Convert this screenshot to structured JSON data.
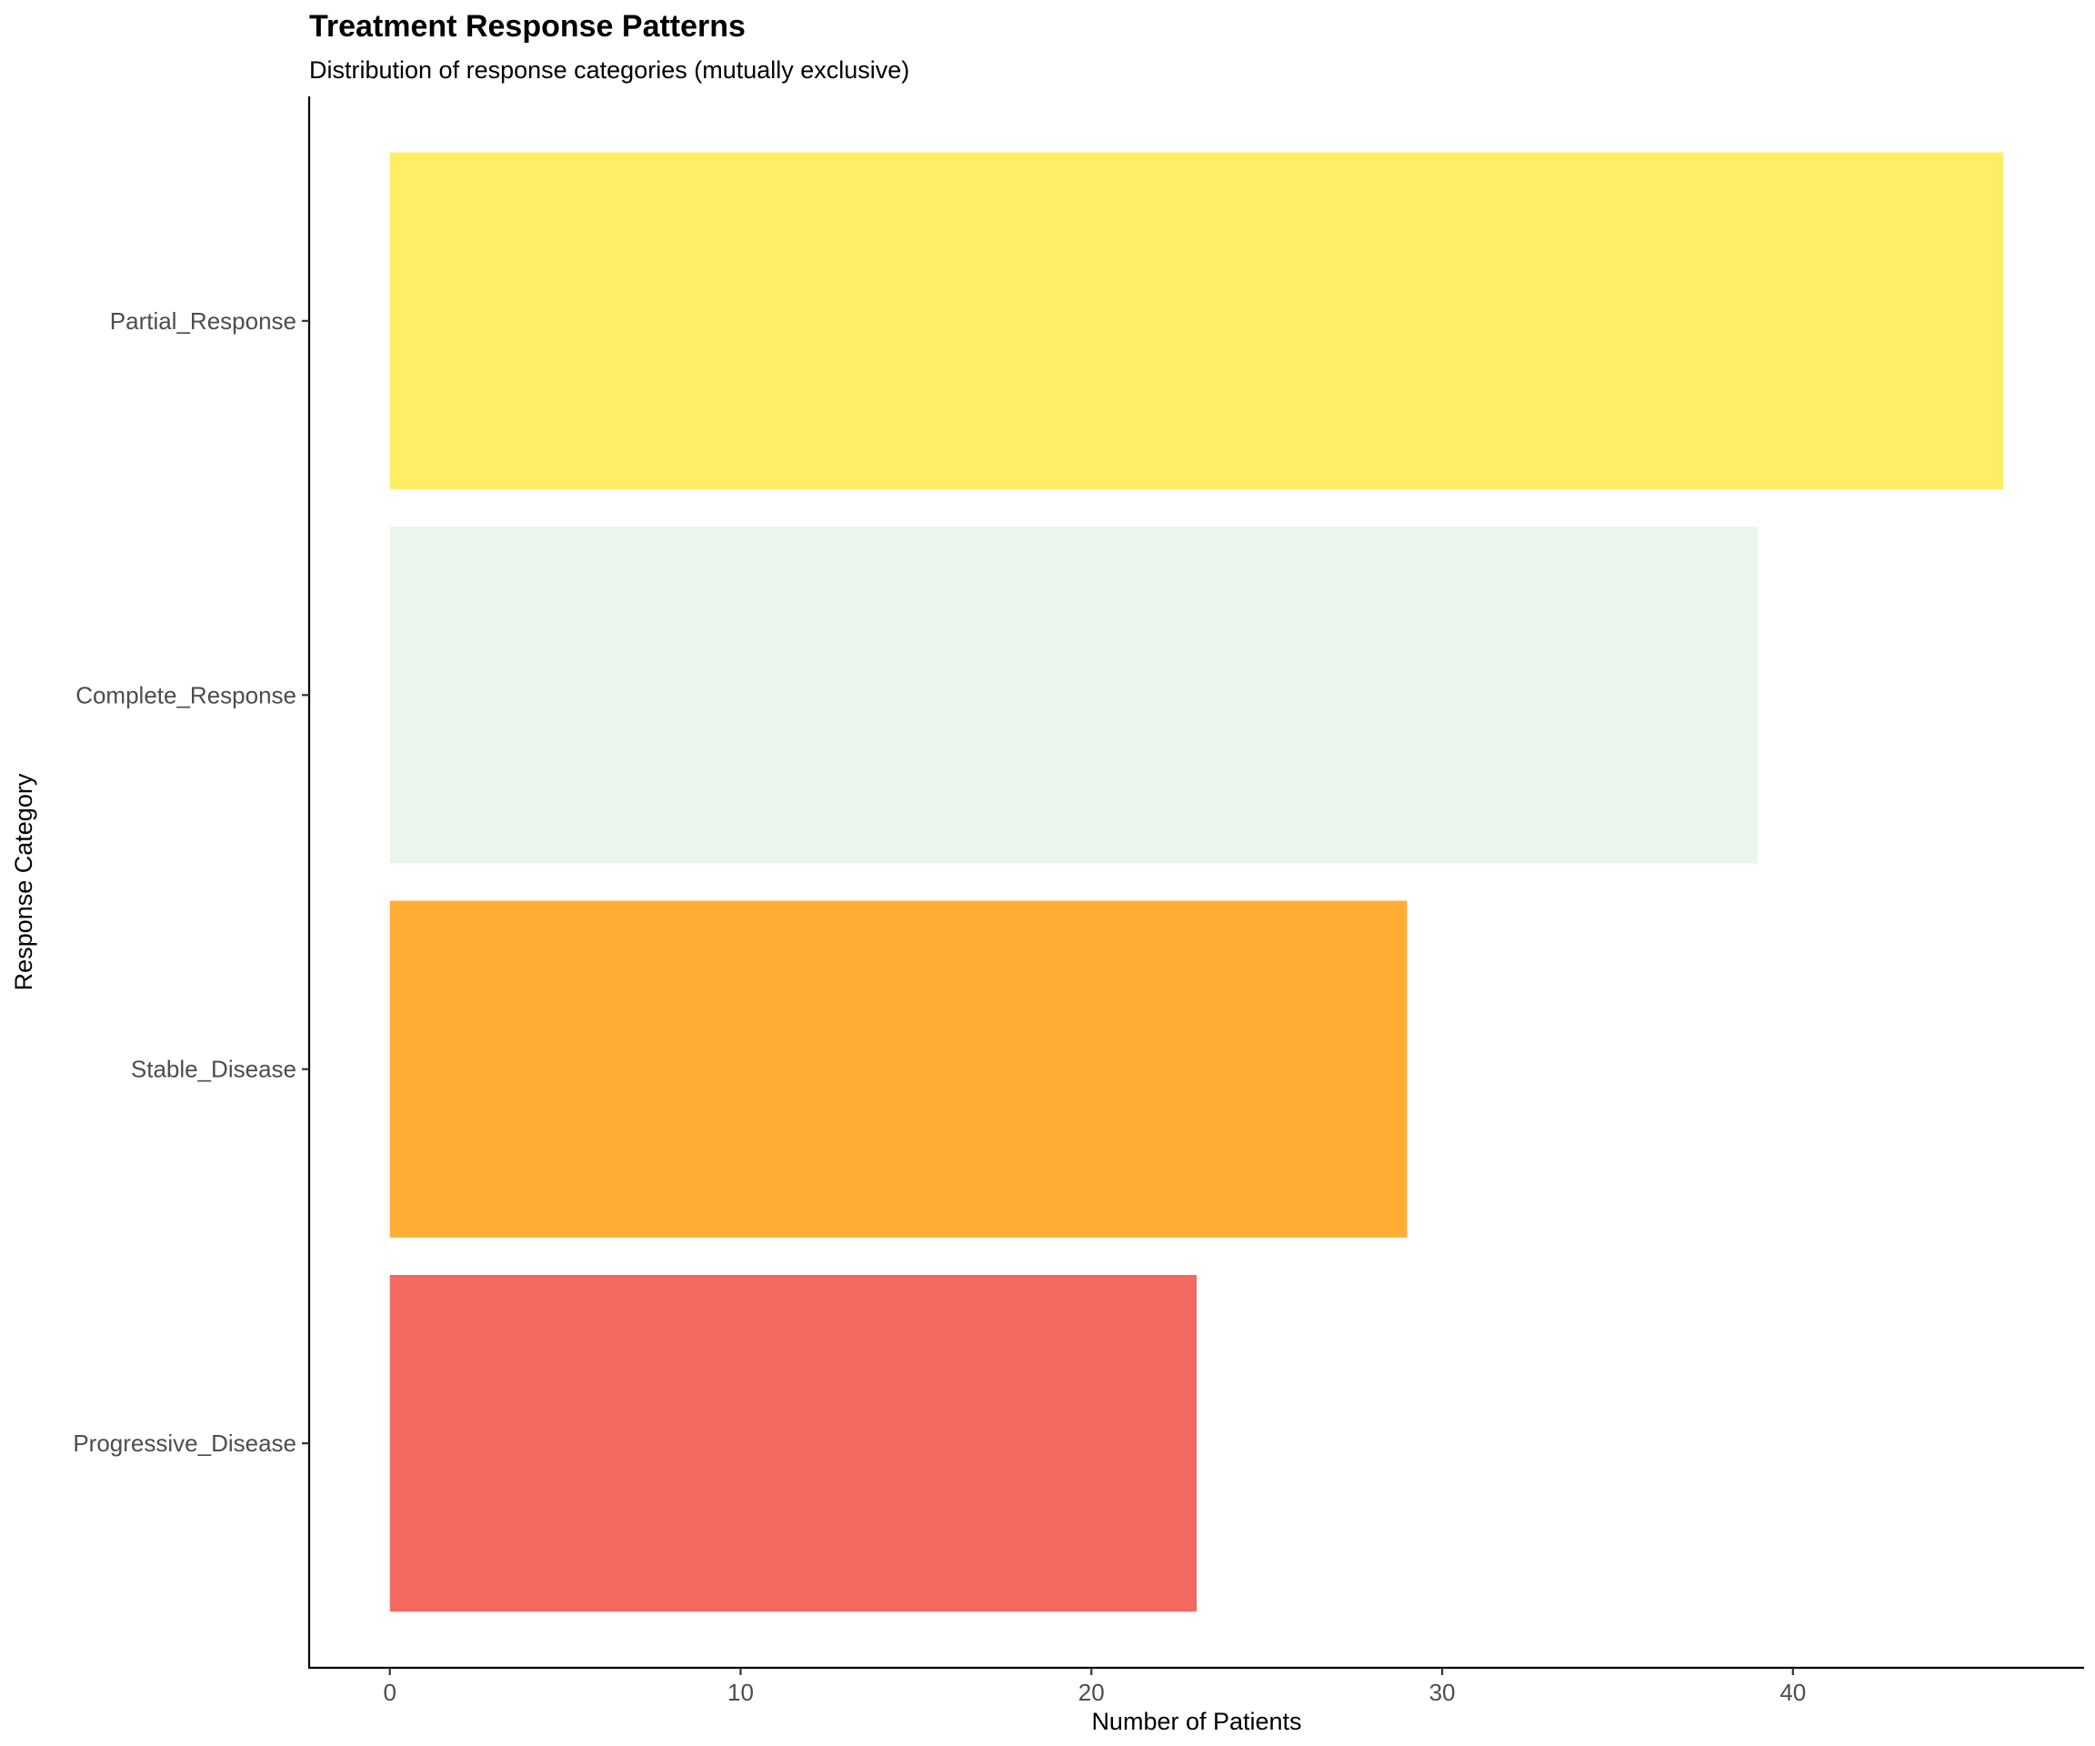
{
  "chart_data": {
    "type": "bar",
    "orientation": "horizontal",
    "title": "Treatment Response Patterns",
    "subtitle": "Distribution of response categories (mutually exclusive)",
    "xlabel": "Number of Patients",
    "ylabel": "Response Category",
    "categories": [
      "Partial_Response",
      "Complete_Response",
      "Stable_Disease",
      "Progressive_Disease"
    ],
    "values": [
      46,
      39,
      29,
      23
    ],
    "colors": [
      "#FFEE65",
      "#EBF5EC",
      "#FFAD35",
      "#F4695F"
    ],
    "xlim": [
      -2.3,
      48.3
    ],
    "xticks": [
      0,
      10,
      20,
      30,
      40
    ],
    "xtick_labels": [
      "0",
      "10",
      "20",
      "30",
      "40"
    ],
    "grid": false,
    "legend": "none"
  }
}
